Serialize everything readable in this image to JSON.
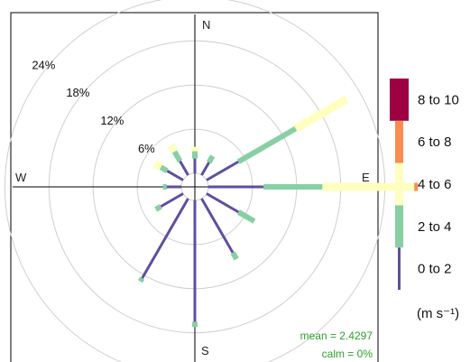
{
  "chart_data": {
    "type": "windrose",
    "directions_deg": [
      0,
      30,
      60,
      90,
      120,
      150,
      180,
      210,
      240,
      270,
      300,
      330
    ],
    "rings": [
      6,
      12,
      18,
      24
    ],
    "ring_labels": [
      "6%",
      "12%",
      "18%",
      "24%"
    ],
    "compass": {
      "N": "N",
      "E": "E",
      "S": "S",
      "W": "W"
    },
    "bins": [
      {
        "label": "0 to 2",
        "color": "#5E4FA2"
      },
      {
        "label": "2 to 4",
        "color": "#88CFA4"
      },
      {
        "label": "4 to 6",
        "color": "#FFFFBF"
      },
      {
        "label": "6 to 8",
        "color": "#F88D51"
      },
      {
        "label": "8 to 10",
        "color": "#9E0142"
      }
    ],
    "frequencies": [
      [
        2.0,
        1.0,
        0.6,
        0,
        0
      ],
      [
        2.0,
        1.0,
        0,
        0,
        0
      ],
      [
        5.0,
        9.0,
        8.0,
        0,
        0
      ],
      [
        7.5,
        8.0,
        12.5,
        0.5,
        0
      ],
      [
        5.0,
        2.5,
        0,
        0,
        0
      ],
      [
        8.5,
        1.0,
        0,
        0,
        0
      ],
      [
        16.5,
        0.7,
        0,
        0,
        0
      ],
      [
        12.5,
        0.5,
        0,
        0,
        0
      ],
      [
        3.5,
        0.8,
        0,
        0,
        0
      ],
      [
        2.0,
        0.5,
        0,
        0,
        0
      ],
      [
        2.5,
        1.0,
        1.0,
        0,
        0
      ],
      [
        2.2,
        1.5,
        1.0,
        0,
        0
      ]
    ],
    "legend_title": "(m s⁻¹)",
    "stats": {
      "mean": "mean = 2.4297",
      "calm": "calm = 0%"
    }
  }
}
